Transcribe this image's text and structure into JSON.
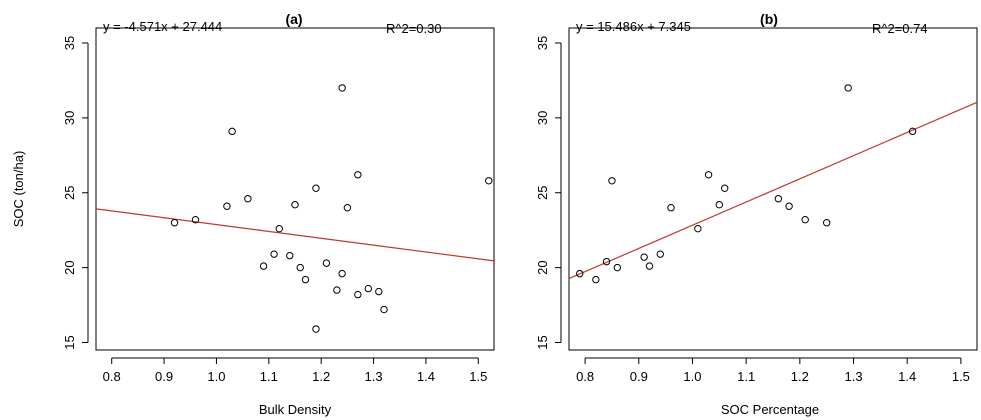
{
  "chart_data": [
    {
      "type": "scatter",
      "panel": "(a)",
      "equation": "y = -4.571x + 27.444",
      "r2": "R^2=0.30",
      "xlabel": "Bulk Density",
      "ylabel": "SOC (ton/ha)",
      "xlim": [
        0.77,
        1.53
      ],
      "ylim": [
        14.5,
        36.0
      ],
      "xticks": [
        0.8,
        0.9,
        1.0,
        1.1,
        1.2,
        1.3,
        1.4,
        1.5
      ],
      "xtick_labels": [
        "0.8",
        "0.9",
        "1.0",
        "1.1",
        "1.2",
        "1.3",
        "1.4",
        "1.5"
      ],
      "yticks": [
        15,
        20,
        25,
        30,
        35
      ],
      "ytick_labels": [
        "15",
        "20",
        "25",
        "30",
        "35"
      ],
      "fit": {
        "slope": -4.571,
        "intercept": 27.444,
        "color": "#c0392b"
      },
      "points": [
        [
          0.92,
          23.0
        ],
        [
          0.96,
          23.2
        ],
        [
          1.02,
          24.1
        ],
        [
          1.03,
          29.1
        ],
        [
          1.06,
          24.6
        ],
        [
          1.09,
          20.1
        ],
        [
          1.11,
          20.9
        ],
        [
          1.12,
          22.6
        ],
        [
          1.14,
          20.8
        ],
        [
          1.15,
          24.2
        ],
        [
          1.16,
          20.0
        ],
        [
          1.17,
          19.2
        ],
        [
          1.19,
          25.3
        ],
        [
          1.19,
          15.9
        ],
        [
          1.21,
          20.3
        ],
        [
          1.23,
          18.5
        ],
        [
          1.24,
          32.0
        ],
        [
          1.24,
          19.6
        ],
        [
          1.25,
          24.0
        ],
        [
          1.27,
          26.2
        ],
        [
          1.27,
          18.2
        ],
        [
          1.29,
          18.6
        ],
        [
          1.31,
          18.4
        ],
        [
          1.32,
          17.2
        ],
        [
          1.52,
          25.8
        ]
      ]
    },
    {
      "type": "scatter",
      "panel": "(b)",
      "equation": "y = 15.486x + 7.345",
      "r2": "R^2=0.74",
      "xlabel": "SOC Percentage",
      "ylabel": "",
      "xlim": [
        0.77,
        1.53
      ],
      "ylim": [
        14.5,
        36.0
      ],
      "xticks": [
        0.8,
        0.9,
        1.0,
        1.1,
        1.2,
        1.3,
        1.4,
        1.5
      ],
      "xtick_labels": [
        "0.8",
        "0.9",
        "1.0",
        "1.1",
        "1.2",
        "1.3",
        "1.4",
        "1.5"
      ],
      "yticks": [
        15,
        20,
        25,
        30,
        35
      ],
      "ytick_labels": [
        "15",
        "20",
        "25",
        "30",
        "35"
      ],
      "fit": {
        "slope": 15.486,
        "intercept": 7.345,
        "color": "#c0392b"
      },
      "points": [
        [
          0.79,
          19.6
        ],
        [
          0.82,
          19.2
        ],
        [
          0.84,
          20.4
        ],
        [
          0.85,
          25.8
        ],
        [
          0.86,
          20.0
        ],
        [
          0.91,
          20.7
        ],
        [
          0.92,
          20.1
        ],
        [
          0.94,
          20.9
        ],
        [
          0.96,
          24.0
        ],
        [
          1.01,
          22.6
        ],
        [
          1.03,
          26.2
        ],
        [
          1.05,
          24.2
        ],
        [
          1.06,
          25.3
        ],
        [
          1.16,
          24.6
        ],
        [
          1.18,
          24.1
        ],
        [
          1.21,
          23.2
        ],
        [
          1.25,
          23.0
        ],
        [
          1.29,
          32.0
        ],
        [
          1.41,
          29.1
        ]
      ]
    }
  ]
}
